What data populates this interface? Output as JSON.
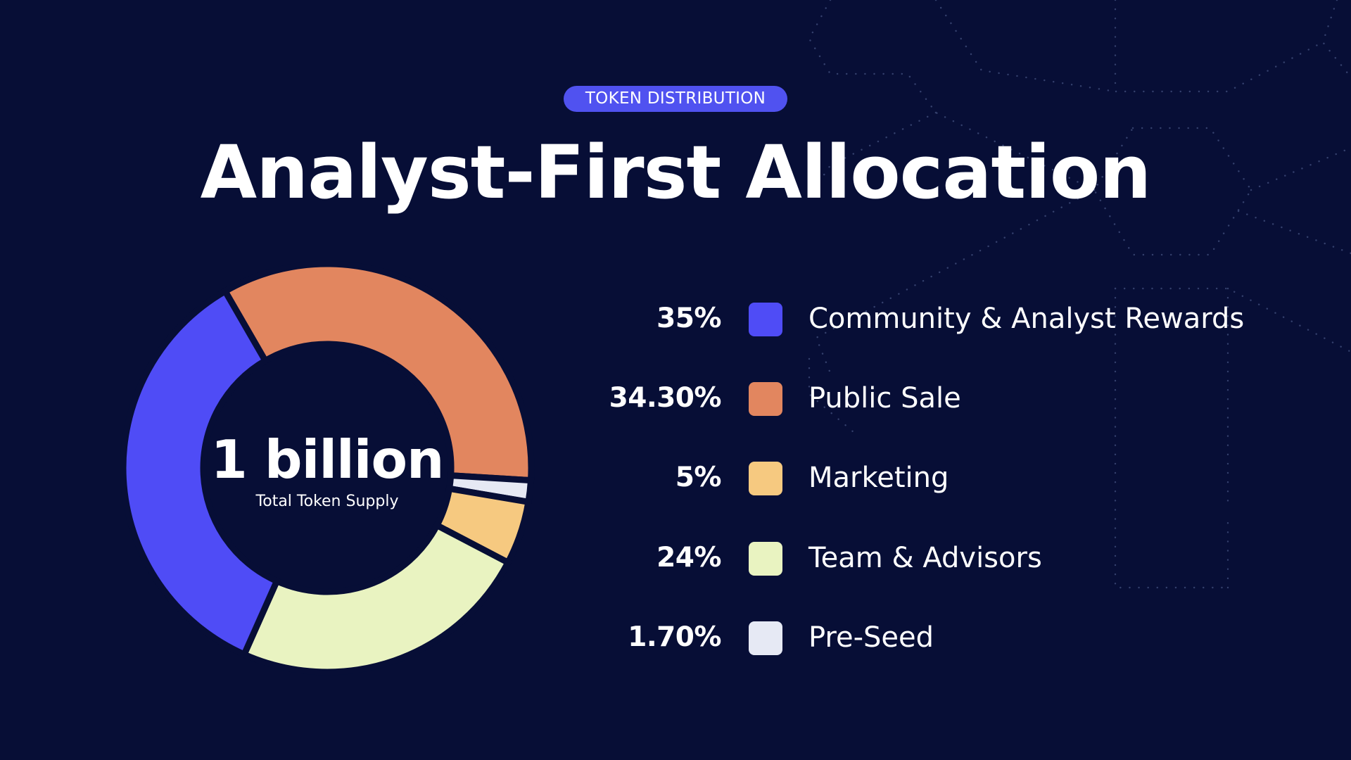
{
  "badge": "TOKEN DISTRIBUTION",
  "title": "Analyst-First Allocation",
  "center": {
    "value": "1 billion",
    "caption": "Total Token Supply"
  },
  "colors": {
    "background": "#070e36",
    "accent": "#5052f0"
  },
  "chart_data": {
    "type": "pie",
    "variant": "donut",
    "title": "Analyst-First Allocation",
    "categories": [
      "Community & Analyst Rewards",
      "Public Sale",
      "Marketing",
      "Team & Advisors",
      "Pre-Seed"
    ],
    "values": [
      35,
      34.3,
      5,
      24,
      1.7
    ],
    "value_labels": [
      "35%",
      "34.30%",
      "5%",
      "24%",
      "1.70%"
    ],
    "colors": [
      "#4f4cf6",
      "#e2865f",
      "#f6c980",
      "#e9f3c1",
      "#e6e9f4"
    ],
    "chart_order": [
      "Public Sale",
      "Pre-Seed",
      "Marketing",
      "Team & Advisors",
      "Community & Analyst Rewards"
    ],
    "start_angle_deg": -30,
    "direction": "clockwise",
    "legend_position": "right",
    "grid": false
  }
}
